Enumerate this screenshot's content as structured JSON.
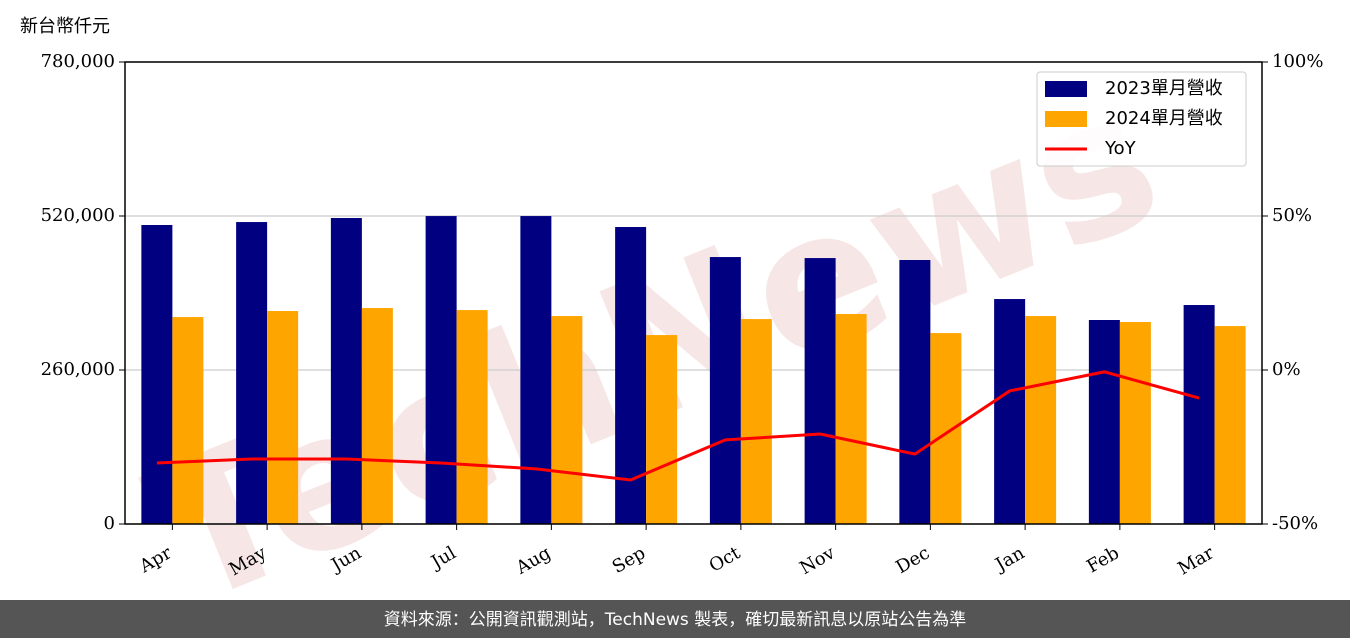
{
  "chart_data": {
    "type": "bar_line",
    "y_label": "新台幣仟元",
    "watermark": "TechNews",
    "footer": "資料來源：公開資訊觀測站，TechNews 製表，確切最新訊息以原站公告為準",
    "categories": [
      "Apr",
      "May",
      "Jun",
      "Jul",
      "Aug",
      "Sep",
      "Oct",
      "Nov",
      "Dec",
      "Jan",
      "Feb",
      "Mar"
    ],
    "series": [
      {
        "name": "2023單月營收",
        "color": "#000080",
        "type": "bar",
        "values": [
          504800,
          509800,
          516600,
          519900,
          519900,
          501400,
          450700,
          449000,
          445700,
          379800,
          344400,
          369700
        ]
      },
      {
        "name": "2024單月營收",
        "color": "#ffa500",
        "type": "bar",
        "values": [
          349400,
          359600,
          364600,
          361200,
          351100,
          319000,
          346000,
          354500,
          322400,
          351100,
          341000,
          334200
        ]
      },
      {
        "name": "YoY",
        "color": "#ff0000",
        "type": "line",
        "axis": "y2",
        "values": [
          -30.2,
          -28.9,
          -28.9,
          -30.2,
          -32.1,
          -35.7,
          -22.7,
          -20.8,
          -27.3,
          -6.8,
          -0.6,
          -9.1
        ]
      }
    ],
    "ylim": [
      0,
      780000
    ],
    "yticks": [
      {
        "value": 0,
        "label": "0"
      },
      {
        "value": 260000,
        "label": "260,000"
      },
      {
        "value": 520000,
        "label": "520,000"
      },
      {
        "value": 780000,
        "label": "780,000"
      }
    ],
    "y2lim": [
      -50,
      100
    ],
    "y2ticks": [
      {
        "value": -50,
        "label": "-50%"
      },
      {
        "value": 0,
        "label": "0%"
      },
      {
        "value": 50,
        "label": "50%"
      },
      {
        "value": 100,
        "label": "100%"
      }
    ],
    "grid": true,
    "legend": "upper right"
  }
}
